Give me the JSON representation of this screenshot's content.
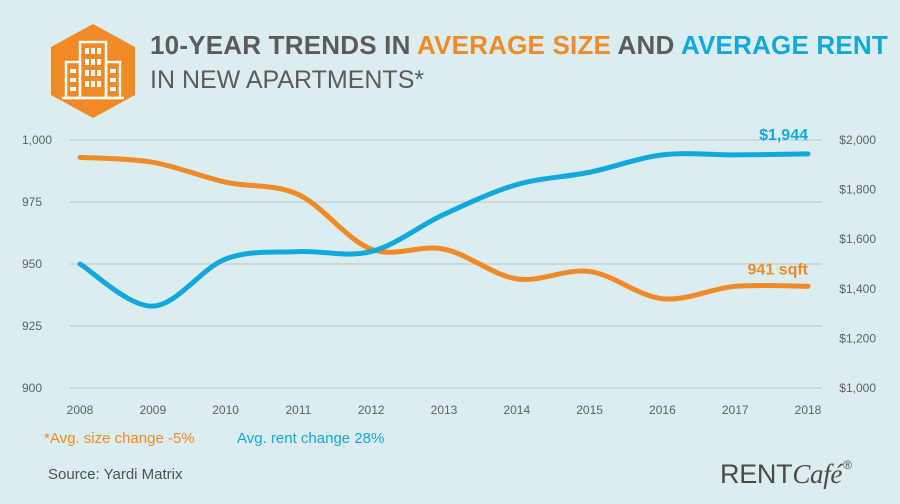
{
  "title": {
    "part1": "10-YEAR TRENDS IN ",
    "highlight1": "AVERAGE SIZE",
    "part2": " AND ",
    "highlight2": "AVERAGE RENT",
    "line2": "IN NEW APARTMENTS*"
  },
  "logo_icon": "apartment-building-hexagon-icon",
  "colors": {
    "size": "#f08a27",
    "rent": "#11a9dc",
    "background": "#dcedf0",
    "grid": "#b9c6c9",
    "text": "#5b5b5b"
  },
  "chart_data": {
    "type": "line",
    "x": [
      2008,
      2009,
      2010,
      2011,
      2012,
      2013,
      2014,
      2015,
      2016,
      2017,
      2018
    ],
    "x_tick_labels": [
      "2008",
      "2009",
      "2010",
      "2011",
      "2012",
      "2013",
      "2014",
      "2015",
      "2016",
      "2017",
      "2018"
    ],
    "series": [
      {
        "axis": "left",
        "color": "#f08a27",
        "values": [
          993,
          991,
          983,
          978,
          956,
          956,
          944,
          947,
          936,
          941,
          941
        ]
      },
      {
        "axis": "right",
        "color": "#11a9dc",
        "values": [
          1500,
          1330,
          1520,
          1550,
          1550,
          1700,
          1820,
          1870,
          1940,
          1940,
          1944
        ]
      }
    ],
    "left_axis": {
      "ylim": [
        900,
        1000
      ],
      "ticks": [
        1000,
        975,
        950,
        925,
        900
      ],
      "tick_labels": [
        "1,000",
        "975",
        "950",
        "925",
        "900"
      ]
    },
    "right_axis": {
      "ylim": [
        1000,
        2000
      ],
      "ticks": [
        2000,
        1800,
        1600,
        1400,
        1200,
        1000
      ],
      "tick_labels": [
        "$2,000",
        "$1,800",
        "$1,600",
        "$1,400",
        "$1,200",
        "$1,000"
      ]
    },
    "end_labels": {
      "rent": "$1,944",
      "size": "941 sqft"
    },
    "grid": "horizontal"
  },
  "footnotes": {
    "size_change": "*Avg. size change -5%",
    "rent_change": "Avg. rent change 28%"
  },
  "source": "Source: Yardi Matrix",
  "brand": {
    "main": "RENT",
    "italic": "Café",
    "mark": "®"
  }
}
